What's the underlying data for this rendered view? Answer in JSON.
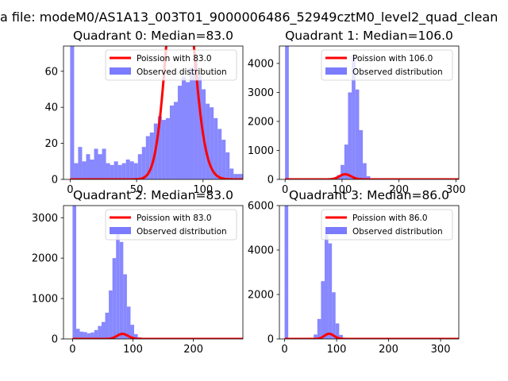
{
  "suptitle": "a file: modeM0/AS1A13_003T01_9000006486_52949cztM0_level2_quad_clean",
  "colors": {
    "poisson": "#ff0000",
    "observed": "#7b7bff",
    "axis": "#000000"
  },
  "chart_data": [
    {
      "type": "bar",
      "title": "Quadrant 0: Median=83.0",
      "xlim": [
        -5,
        130
      ],
      "ylim": [
        0,
        74
      ],
      "xticks": [
        0,
        50,
        100
      ],
      "yticks": [
        0,
        20,
        40,
        60
      ],
      "legend": {
        "placement": "top-right",
        "poisson_label": "Poission with 83.0",
        "observed_label": "Observed distribution"
      },
      "hist": {
        "bin_start": 0,
        "bin_width": 3,
        "counts": [
          74,
          9,
          18,
          10,
          14,
          11,
          17,
          14,
          17,
          9,
          8,
          10,
          8,
          9,
          11,
          10,
          9,
          14,
          18,
          24,
          26,
          31,
          35,
          33,
          34,
          41,
          43,
          52,
          57,
          54,
          62,
          66,
          58,
          50,
          42,
          40,
          34,
          28,
          22,
          15,
          6,
          3,
          3,
          3
        ]
      },
      "poisson_mean": 83,
      "poisson_scale": 3250
    },
    {
      "type": "bar",
      "title": "Quadrant 1: Median=106.0",
      "xlim": [
        -10,
        305
      ],
      "ylim": [
        0,
        4600
      ],
      "xticks": [
        0,
        100,
        200,
        300
      ],
      "yticks": [
        0,
        1000,
        2000,
        3000,
        4000
      ],
      "legend": {
        "placement": "top-right",
        "poisson_label": "Poission with 106.0",
        "observed_label": "Observed distribution"
      },
      "hist": {
        "bin_start": 0,
        "bin_width": 6.5,
        "counts": [
          4600,
          0,
          0,
          0,
          0,
          0,
          0,
          0,
          0,
          0,
          0,
          0,
          40,
          60,
          150,
          500,
          1200,
          3000,
          4300,
          3100,
          1700,
          560,
          110,
          25,
          8,
          0,
          0,
          0,
          0,
          0,
          0,
          0,
          0,
          0,
          0,
          0,
          0,
          0,
          0,
          0,
          0,
          0,
          0,
          0,
          0
        ]
      },
      "poisson_mean": 106,
      "poisson_scale": 4550
    },
    {
      "type": "bar",
      "title": "Quadrant 2: Median=83.0",
      "xlim": [
        -15,
        282
      ],
      "ylim": [
        0,
        3300
      ],
      "xticks": [
        0,
        100,
        200
      ],
      "yticks": [
        0,
        1000,
        2000,
        3000
      ],
      "legend": {
        "placement": "top-right",
        "poisson_label": "Poission with 83.0",
        "observed_label": "Observed distribution"
      },
      "hist": {
        "bin_start": 0,
        "bin_width": 6,
        "counts": [
          3300,
          250,
          180,
          170,
          140,
          160,
          220,
          320,
          420,
          650,
          1200,
          2000,
          2600,
          2400,
          1600,
          800,
          350,
          120,
          40,
          10,
          0,
          0,
          0,
          0,
          0,
          0,
          0,
          0,
          0,
          0,
          0,
          0,
          0,
          0,
          0,
          0,
          0,
          0,
          0,
          0,
          0,
          0,
          0,
          0,
          0
        ]
      },
      "poisson_mean": 83,
      "poisson_scale": 2850
    },
    {
      "type": "bar",
      "title": "Quadrant 3: Median=86.0",
      "xlim": [
        -10,
        335
      ],
      "ylim": [
        0,
        6000
      ],
      "xticks": [
        0,
        100,
        200,
        300
      ],
      "yticks": [
        0,
        2000,
        4000,
        6000
      ],
      "legend": {
        "placement": "top-right",
        "poisson_label": "Poission with 86.0",
        "observed_label": "Observed distribution"
      },
      "hist": {
        "bin_start": 0,
        "bin_width": 7,
        "counts": [
          6000,
          0,
          0,
          0,
          0,
          0,
          0,
          50,
          200,
          900,
          2600,
          4700,
          4300,
          2100,
          700,
          180,
          40,
          10,
          0,
          0,
          0,
          0,
          0,
          0,
          0,
          0,
          0,
          0,
          0,
          0,
          0,
          0,
          0,
          0,
          0,
          0,
          0,
          0,
          0,
          0,
          0,
          0,
          0,
          0,
          0,
          0
        ]
      },
      "poisson_mean": 86,
      "poisson_scale": 5400
    }
  ]
}
